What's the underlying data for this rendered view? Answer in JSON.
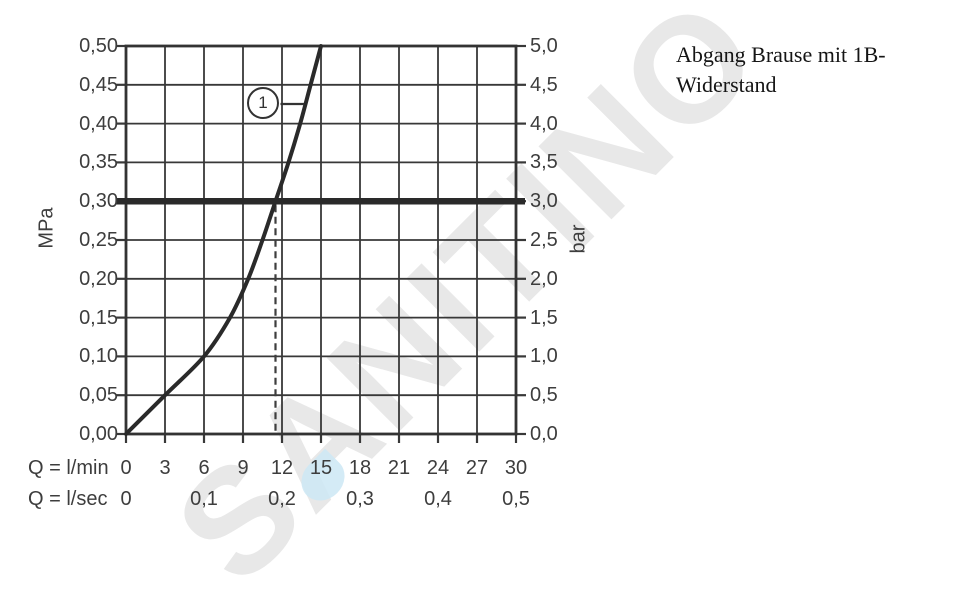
{
  "caption": {
    "line1": "Abgang Brause mit 1B-",
    "line2": "Widerstand"
  },
  "watermark": {
    "text": "SANITINO",
    "drop_icon": "water-drop"
  },
  "chart_data": {
    "type": "line",
    "title": "",
    "grid": true,
    "x_axis": {
      "primary_label": "Q = l/min",
      "primary_ticks": [
        "0",
        "3",
        "6",
        "9",
        "12",
        "15",
        "18",
        "21",
        "24",
        "27",
        "30"
      ],
      "secondary_label": "Q = l/sec",
      "secondary_ticks": [
        "0",
        "0,1",
        "0,2",
        "0,3",
        "0,4",
        "0,5"
      ],
      "range_lmin": [
        0,
        30
      ]
    },
    "y_axis_left": {
      "unit": "MPa",
      "ticks": [
        "0,50",
        "0,45",
        "0,40",
        "0,35",
        "0,30",
        "0,25",
        "0,20",
        "0,15",
        "0,10",
        "0,05",
        "0,00"
      ],
      "range_mpa": [
        0,
        0.5
      ]
    },
    "y_axis_right": {
      "unit": "bar",
      "ticks": [
        "5,0",
        "4,5",
        "4,0",
        "3,5",
        "3,0",
        "2,5",
        "2,0",
        "1,5",
        "1,0",
        "0,5",
        "0,0"
      ],
      "range_bar": [
        0,
        5
      ]
    },
    "series": [
      {
        "marker_label": "1",
        "points_lmin_mpa": [
          [
            0,
            0
          ],
          [
            3,
            0.05
          ],
          [
            6,
            0.1
          ],
          [
            8,
            0.15
          ],
          [
            9.4,
            0.2
          ],
          [
            10.5,
            0.25
          ],
          [
            11.5,
            0.3
          ],
          [
            12.5,
            0.35
          ],
          [
            13.4,
            0.4
          ],
          [
            14.2,
            0.45
          ],
          [
            15,
            0.5
          ]
        ]
      }
    ],
    "reference_line": {
      "value_mpa": 0.3,
      "value_bar": 3.0
    },
    "dashed_guide": {
      "value_lmin": 11.5,
      "from_mpa": 0,
      "to_mpa": 0.3
    },
    "colors": {
      "line": "#2a2a2a",
      "grid": "#383838",
      "watermark_gray": "#e8e8e8",
      "drop_blue": "#cde7f5"
    }
  }
}
